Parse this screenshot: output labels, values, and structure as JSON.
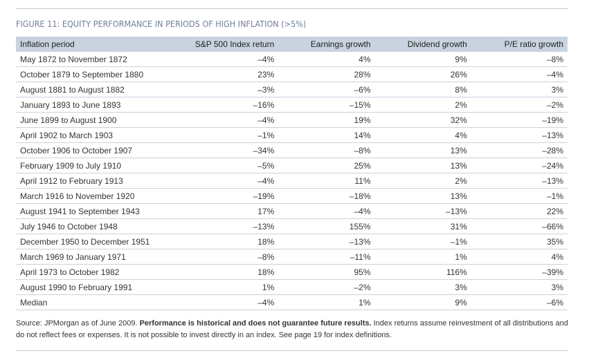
{
  "figure_title": "FIGURE 11: EQUITY PERFORMANCE IN PERIODS OF HIGH INFLATION (>5%)",
  "table": {
    "headers": [
      "Inflation period",
      "S&P 500 Index return",
      "Earnings growth",
      "Dividend growth",
      "P/E ratio growth"
    ],
    "rows": [
      [
        "May 1872 to November 1872",
        "–4%",
        "4%",
        "9%",
        "–8%"
      ],
      [
        "October 1879 to September 1880",
        "23%",
        "28%",
        "26%",
        "–4%"
      ],
      [
        "August 1881 to August 1882",
        "–3%",
        "–6%",
        "8%",
        "3%"
      ],
      [
        "January 1893 to June 1893",
        "–16%",
        "–15%",
        "2%",
        "–2%"
      ],
      [
        "June 1899 to August 1900",
        "–4%",
        "19%",
        "32%",
        "–19%"
      ],
      [
        "April 1902 to March 1903",
        "–1%",
        "14%",
        "4%",
        "–13%"
      ],
      [
        "October 1906 to October 1907",
        "–34%",
        "–8%",
        "13%",
        "–28%"
      ],
      [
        "February 1909 to July 1910",
        "–5%",
        "25%",
        "13%",
        "–24%"
      ],
      [
        "April 1912 to February 1913",
        "–4%",
        "11%",
        "2%",
        "–13%"
      ],
      [
        "March 1916 to November 1920",
        "–19%",
        "–18%",
        "13%",
        "–1%"
      ],
      [
        "August 1941 to September 1943",
        "17%",
        "–4%",
        "–13%",
        "22%"
      ],
      [
        "July 1946 to October 1948",
        "–13%",
        "155%",
        "31%",
        "–66%"
      ],
      [
        "December 1950 to December 1951",
        "18%",
        "–13%",
        "–1%",
        "35%"
      ],
      [
        "March 1969 to January 1971",
        "–8%",
        "–11%",
        "1%",
        "4%"
      ],
      [
        "April 1973 to October 1982",
        "18%",
        "95%",
        "116%",
        "–39%"
      ],
      [
        "August 1990 to February 1991",
        "1%",
        "–2%",
        "3%",
        "3%"
      ],
      [
        "Median",
        "–4%",
        "1%",
        "9%",
        "–6%"
      ]
    ]
  },
  "source": {
    "lead": "Source: JPMorgan as of June 2009. ",
    "bold": "Performance is historical and does not guarantee future results.",
    "rest": " Index returns assume reinvestment of all distributions and do not reflect fees or expenses. It is not possible to invest directly in an index. See page 19 for index definitions."
  },
  "colors": {
    "header_bg": "#c8d3df",
    "title": "#6f7f93",
    "row_rule": "#c9d3de"
  }
}
